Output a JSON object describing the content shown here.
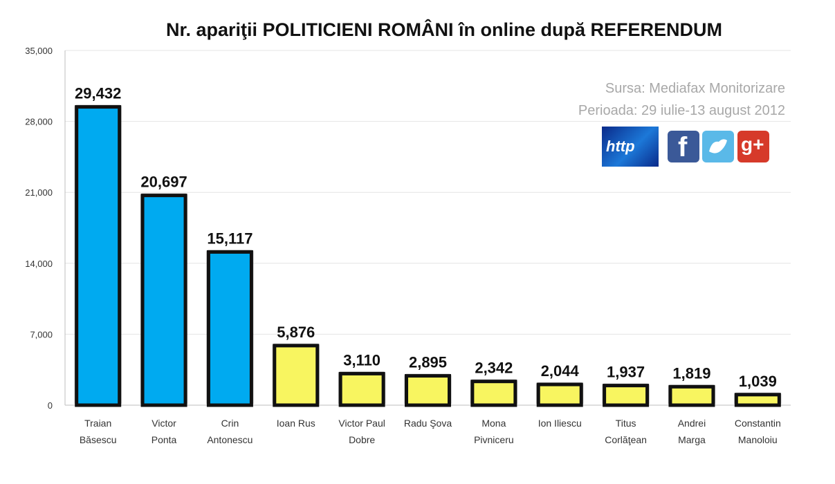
{
  "chart_data": {
    "type": "bar",
    "title": "Nr. apariţii POLITICIENI ROMÂNI în online după REFERENDUM",
    "xlabel": "",
    "ylabel": "",
    "ylim": [
      0,
      35000
    ],
    "yticks": [
      "35,000",
      "28,000",
      "21,000",
      "14,000",
      "7,000",
      "0"
    ],
    "ytick_values": [
      35000,
      28000,
      21000,
      14000,
      7000,
      0
    ],
    "grid": true,
    "legend": "none",
    "categories": [
      [
        "Traian",
        "Băsescu"
      ],
      [
        "Victor",
        "Ponta"
      ],
      [
        "Crin",
        "Antonescu"
      ],
      [
        "Ioan Rus"
      ],
      [
        "Victor Paul",
        "Dobre"
      ],
      [
        "Radu Şova"
      ],
      [
        "Mona",
        "Pivniceru"
      ],
      [
        "Ion Iliescu"
      ],
      [
        "Titus",
        "Corlăţean"
      ],
      [
        "Andrei",
        "Marga"
      ],
      [
        "Constantin",
        "Manoloiu"
      ]
    ],
    "values": [
      29432,
      20697,
      15117,
      5876,
      3110,
      2895,
      2342,
      2044,
      1937,
      1819,
      1039
    ],
    "value_labels": [
      "29,432",
      "20,697",
      "15,117",
      "5,876",
      "3,110",
      "2,895",
      "2,342",
      "2,044",
      "1,937",
      "1,819",
      "1,039"
    ],
    "bar_colors": [
      "#00aaf0",
      "#00aaf0",
      "#00aaf0",
      "#f8f560",
      "#f8f560",
      "#f8f560",
      "#f8f560",
      "#f8f560",
      "#f8f560",
      "#f8f560",
      "#f8f560"
    ]
  },
  "source": {
    "line1": "Sursa: Mediafax Monitorizare",
    "line2": "Perioada: 29 iulie-13 august 2012"
  },
  "icons": {
    "http_text": "http",
    "facebook_glyph": "f",
    "googleplus_glyph": "g+"
  }
}
